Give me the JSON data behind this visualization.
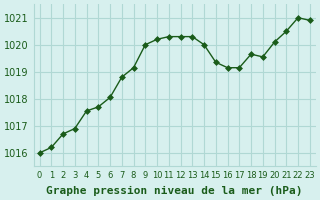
{
  "x": [
    0,
    1,
    2,
    3,
    4,
    5,
    6,
    7,
    8,
    9,
    10,
    11,
    12,
    13,
    14,
    15,
    16,
    17,
    18,
    19,
    20,
    21,
    22,
    23
  ],
  "y": [
    1016.0,
    1016.2,
    1016.7,
    1016.9,
    1017.55,
    1017.7,
    1018.05,
    1018.8,
    1019.15,
    1020.0,
    1020.2,
    1020.3,
    1020.3,
    1020.3,
    1020.0,
    1019.35,
    1019.15,
    1019.15,
    1019.65,
    1019.55,
    1020.1,
    1020.5,
    1021.0,
    1020.9
  ],
  "line_color": "#1a5c1a",
  "marker": "D",
  "marker_size": 3,
  "bg_color": "#d7f0ee",
  "grid_color": "#b0d8d4",
  "ylabel_ticks": [
    1016,
    1017,
    1018,
    1019,
    1020,
    1021
  ],
  "xlabel": "Graphe pression niveau de la mer (hPa)",
  "ylim": [
    1015.5,
    1021.5
  ],
  "xlim": [
    -0.5,
    23.5
  ],
  "tick_color": "#1a5c1a",
  "label_color": "#1a5c1a",
  "xlabel_fontsize": 8,
  "tick_fontsize": 7
}
